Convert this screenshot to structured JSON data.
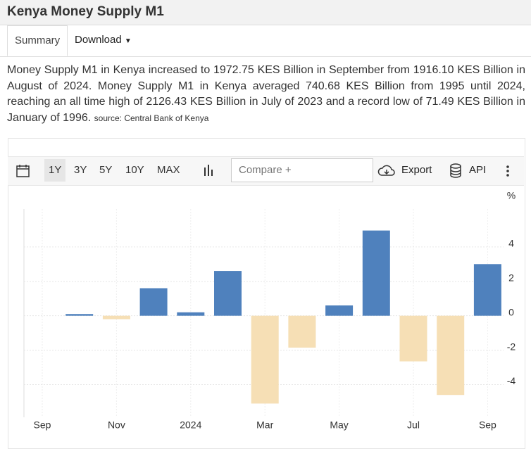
{
  "header": {
    "title": "Kenya Money Supply M1"
  },
  "tabs": [
    "Summary",
    "Download"
  ],
  "description": {
    "text": "Money Supply M1 in Kenya increased to 1972.75 KES Billion in September from 1916.10 KES Billion in August of 2024. Money Supply M1 in Kenya averaged 740.68 KES Billion from 1995 until 2024, reaching an all time high of 2126.43 KES Billion in July of 2023 and a record low of 71.49 KES Billion in January of 1996.",
    "source": "source: Central Bank of Kenya"
  },
  "toolbar": {
    "ranges": [
      "1Y",
      "3Y",
      "5Y",
      "10Y",
      "MAX"
    ],
    "compare": "Compare +",
    "export": "Export",
    "api": "API"
  },
  "chart_data": {
    "type": "bar",
    "y_unit": "%",
    "categories": [
      "Sep",
      null,
      "Nov",
      null,
      "2024",
      null,
      "Mar",
      null,
      "May",
      null,
      "Jul",
      null,
      "Sep"
    ],
    "values": [
      null,
      0.1,
      -0.2,
      1.6,
      0.2,
      2.6,
      -5.1,
      -1.85,
      0.6,
      4.95,
      -2.65,
      -4.6,
      3.0
    ],
    "color": "#4f81bd",
    "negative_color": "#f6dfb5",
    "ylim": [
      -5.9,
      6.2
    ],
    "yticks": [
      -4,
      -2,
      0,
      2,
      4
    ],
    "grid": true
  }
}
